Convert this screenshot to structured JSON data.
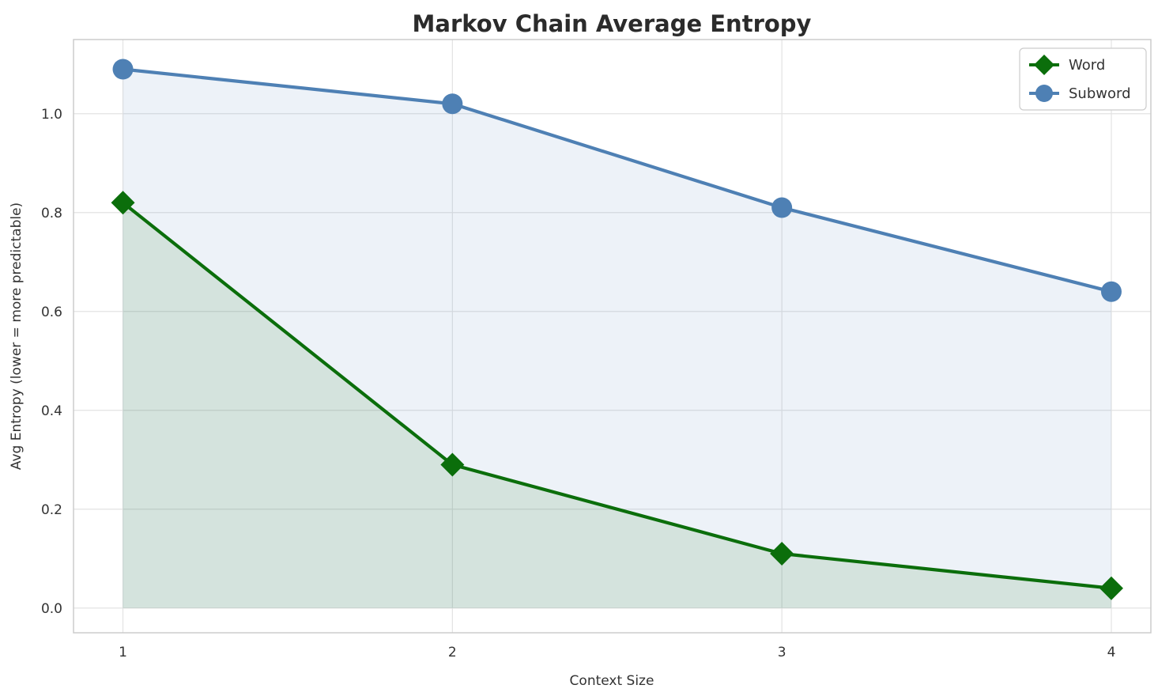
{
  "chart_data": {
    "type": "line",
    "title": "Markov Chain Average Entropy",
    "xlabel": "Context Size",
    "ylabel": "Avg Entropy (lower = more predictable)",
    "x": [
      1,
      2,
      3,
      4
    ],
    "x_tick_labels": [
      "1",
      "2",
      "3",
      "4"
    ],
    "y_tick_values": [
      0.0,
      0.2,
      0.4,
      0.6,
      0.8,
      1.0
    ],
    "y_tick_labels": [
      "0.0",
      "0.2",
      "0.4",
      "0.6",
      "0.8",
      "1.0"
    ],
    "xlim": [
      0.85,
      4.12
    ],
    "ylim": [
      -0.05,
      1.15
    ],
    "grid": true,
    "area_fill_to": 0.0,
    "legend_position": "upper right",
    "series": [
      {
        "name": "Word",
        "marker": "diamond",
        "color": "#0b6e0b",
        "fill_color": "rgba(13,110,13,0.11)",
        "values": [
          0.82,
          0.29,
          0.11,
          0.04
        ]
      },
      {
        "name": "Subword",
        "marker": "circle",
        "color": "#4e80b4",
        "fill_color": "rgba(79,129,185,0.10)",
        "values": [
          1.09,
          1.02,
          0.81,
          0.64
        ]
      }
    ],
    "colors": {
      "grid": "#e3e3e3",
      "spine": "#c9c9c9",
      "text": "#333333",
      "title": "#2b2b2b"
    }
  }
}
